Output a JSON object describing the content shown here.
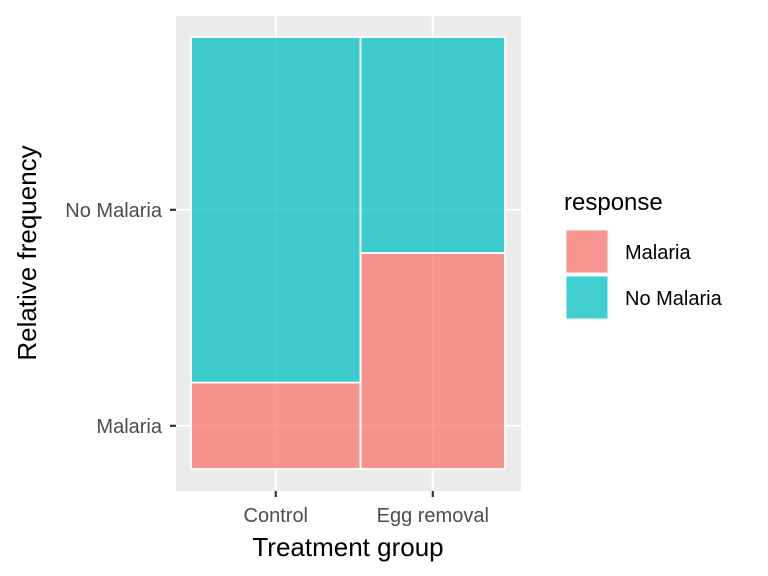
{
  "chart_data": {
    "type": "mosaic",
    "xlabel": "Treatment group",
    "ylabel": "Relative frequency",
    "categories": [
      "Control",
      "Egg removal"
    ],
    "category_widths": [
      0.54,
      0.46
    ],
    "y_tick_labels": [
      "Malaria",
      "No Malaria"
    ],
    "series": [
      {
        "name": "Malaria",
        "color": "#F8766D",
        "values": [
          0.2,
          0.5
        ]
      },
      {
        "name": "No Malaria",
        "color": "#00BFC4",
        "values": [
          0.8,
          0.5
        ]
      }
    ],
    "legend": {
      "title": "response",
      "position": "right"
    },
    "grid": true,
    "panel_background": "#EBEBEB"
  }
}
